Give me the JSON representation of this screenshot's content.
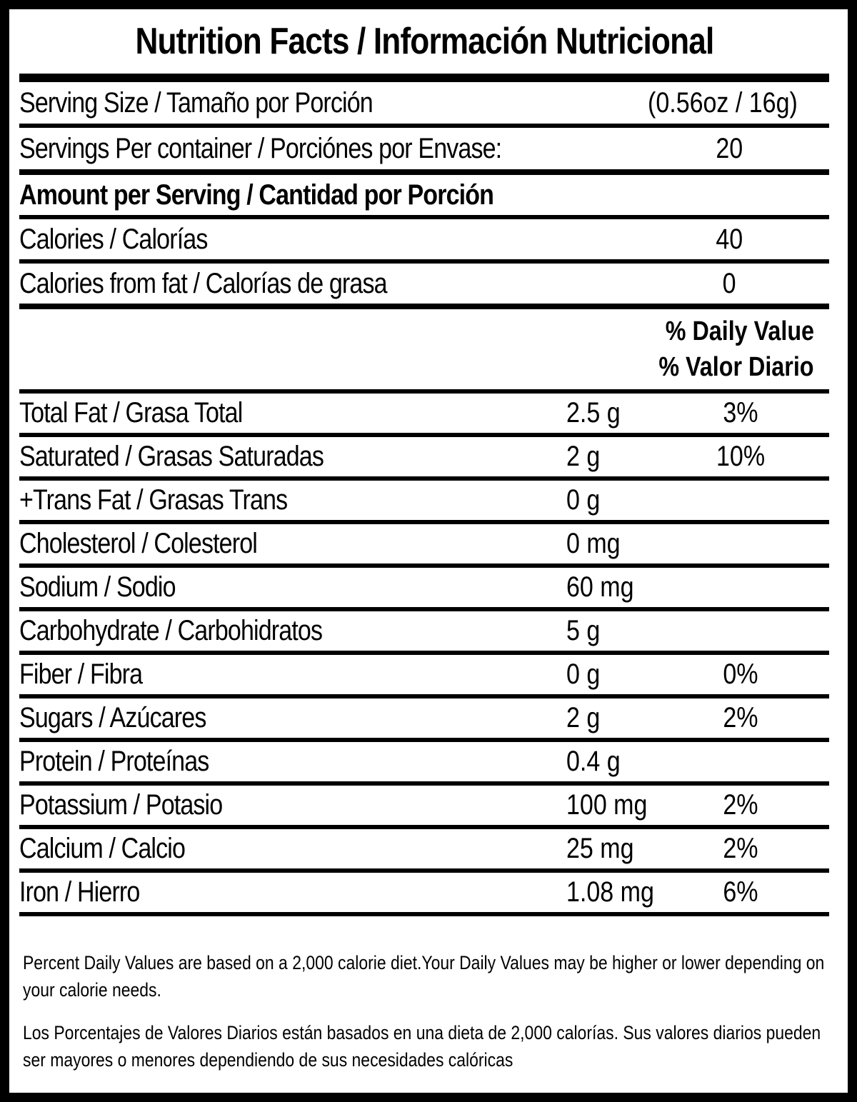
{
  "title": "Nutrition Facts / Información Nutricional",
  "colors": {
    "ink": "#000000",
    "paper": "#ffffff"
  },
  "serving": {
    "serving_size": {
      "label": "Serving Size / Tamaño por Porción",
      "value": "(0.56oz / 16g)"
    },
    "servings_per_container": {
      "label": "Servings Per container / Porciónes por Envase:",
      "value": "20"
    }
  },
  "amount_heading": "Amount per Serving / Cantidad por Porción",
  "calories": {
    "label": "Calories / Calorías",
    "value": "40"
  },
  "calories_from_fat": {
    "label": "Calories from fat / Calorías de grasa",
    "value": "0"
  },
  "daily_value_header": {
    "line1": "% Daily Value",
    "line2": "% Valor Diario"
  },
  "nutrients": [
    {
      "label": "Total Fat / Grasa Total",
      "amount": "2.5 g",
      "percent": "3%"
    },
    {
      "label": "Saturated / Grasas Saturadas",
      "amount": "2 g",
      "percent": "10%"
    },
    {
      "label": "+Trans Fat / Grasas Trans",
      "amount": "0 g",
      "percent": ""
    },
    {
      "label": "Cholesterol / Colesterol",
      "amount": "0 mg",
      "percent": ""
    },
    {
      "label": "Sodium / Sodio",
      "amount": "60 mg",
      "percent": ""
    },
    {
      "label": "Carbohydrate / Carbohidratos",
      "amount": "5 g",
      "percent": ""
    },
    {
      "label": "Fiber / Fibra",
      "amount": "0 g",
      "percent": "0%"
    },
    {
      "label": "Sugars / Azúcares",
      "amount": "2 g",
      "percent": "2%"
    },
    {
      "label": "Protein / Proteínas",
      "amount": "0.4 g",
      "percent": ""
    },
    {
      "label": "Potassium / Potasio",
      "amount": "100 mg",
      "percent": "2%"
    },
    {
      "label": "Calcium / Calcio",
      "amount": "25 mg",
      "percent": "2%"
    },
    {
      "label": "Iron / Hierro",
      "amount": "1.08 mg",
      "percent": "6%"
    }
  ],
  "footnotes": {
    "english": "Percent Daily Values are based on a 2,000 calorie diet.Your Daily Values may be higher or lower depending on your calorie needs.",
    "spanish": "Los Porcentajes de Valores Diarios están basados en una dieta de 2,000 calorías. Sus valores diarios pueden ser mayores o menores dependiendo de sus necesidades calóricas"
  }
}
